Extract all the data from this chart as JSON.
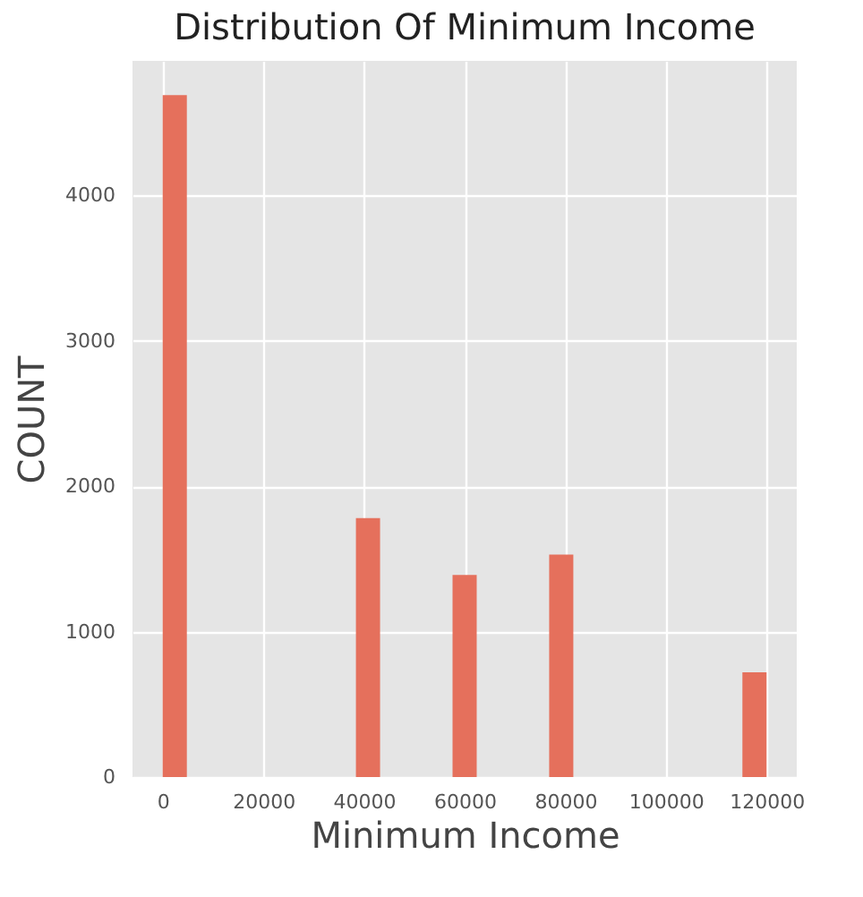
{
  "chart_data": {
    "type": "histogram",
    "title": "Distribution Of Minimum Income",
    "xlabel": "Minimum Income",
    "ylabel": "COUNT",
    "bins": [
      0,
      4800,
      9600,
      14400,
      19200,
      24000,
      28800,
      33600,
      38400,
      43200,
      48000,
      52800,
      57600,
      62400,
      67200,
      72000,
      76800,
      81600,
      86400,
      91200,
      96000,
      100800,
      105600,
      110400,
      115200,
      120000
    ],
    "values": [
      4690,
      0,
      0,
      0,
      0,
      0,
      0,
      0,
      1780,
      0,
      0,
      0,
      1390,
      0,
      0,
      0,
      1530,
      0,
      0,
      0,
      0,
      0,
      0,
      0,
      720
    ],
    "color": "#e5705c",
    "xlim": [
      -6000,
      126000
    ],
    "ylim": [
      0,
      4925
    ],
    "xticks": [
      0,
      20000,
      40000,
      60000,
      80000,
      100000,
      120000
    ],
    "yticks": [
      0,
      1000,
      2000,
      3000,
      4000
    ],
    "grid": true
  }
}
